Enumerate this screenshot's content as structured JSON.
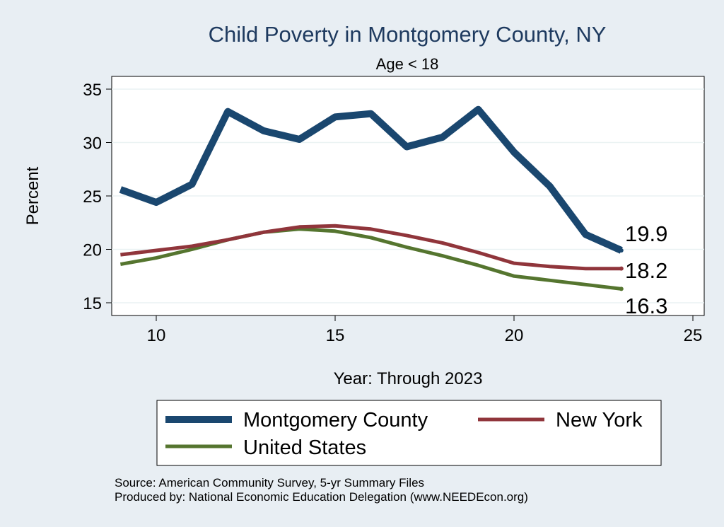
{
  "chart_data": {
    "type": "line",
    "title": "Child Poverty in Montgomery County, NY",
    "subtitle": "Age < 18",
    "xlabel": "Year: Through 2023",
    "ylabel": "Percent",
    "xlim": [
      9,
      25
    ],
    "ylim": [
      14,
      36
    ],
    "xticks": [
      10,
      15,
      20,
      25
    ],
    "yticks": [
      15,
      20,
      25,
      30,
      35
    ],
    "grid": true,
    "x": [
      9,
      10,
      11,
      12,
      13,
      14,
      15,
      16,
      17,
      18,
      19,
      20,
      21,
      22,
      23
    ],
    "series": [
      {
        "name": "Montgomery County",
        "color": "#1a476f",
        "values": [
          25.6,
          24.4,
          26.1,
          32.9,
          31.1,
          30.3,
          32.4,
          32.7,
          29.6,
          30.5,
          33.1,
          29.1,
          25.9,
          21.4,
          19.9
        ],
        "end_label": "19.9"
      },
      {
        "name": "New York",
        "color": "#90353b",
        "values": [
          19.5,
          19.9,
          20.3,
          20.9,
          21.6,
          22.1,
          22.2,
          21.9,
          21.3,
          20.6,
          19.7,
          18.7,
          18.4,
          18.2,
          18.2
        ],
        "end_label": "18.2"
      },
      {
        "name": "United States",
        "color": "#55752f",
        "values": [
          18.6,
          19.2,
          20.0,
          20.9,
          21.6,
          21.9,
          21.7,
          21.1,
          20.2,
          19.4,
          18.5,
          17.5,
          17.1,
          16.7,
          16.3
        ],
        "end_label": "16.3"
      }
    ],
    "legend_position": "bottom",
    "notes": [
      "Source: American Community Survey, 5-yr Summary Files",
      "Produced by: National Economic Education Delegation (www.NEEDEcon.org)"
    ]
  }
}
